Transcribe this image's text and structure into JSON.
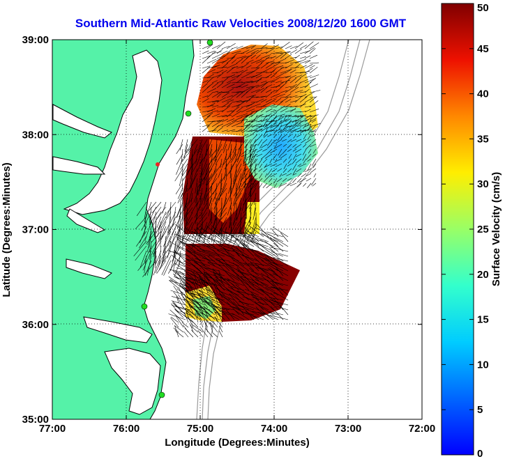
{
  "title": "Southern Mid-Atlantic Raw Velocities 2008/12/20 1600 GMT",
  "chart_data": {
    "type": "map",
    "xlabel": "Longitude (Degrees:Minutes)",
    "ylabel": "Latitude (Degrees:Minutes)",
    "xlim": [
      77,
      72
    ],
    "ylim": [
      35,
      39
    ],
    "x_ticks": [
      "77:00",
      "76:00",
      "75:00",
      "74:00",
      "73:00",
      "72:00"
    ],
    "y_ticks": [
      "39:00",
      "38:00",
      "37:00",
      "36:00",
      "35:00"
    ],
    "grid": "dotted",
    "colorbar": {
      "label": "Surface Velocity (cm/s)",
      "range": [
        0,
        50
      ],
      "ticks": [
        "50",
        "45",
        "40",
        "35",
        "30",
        "25",
        "20",
        "15",
        "10",
        "5",
        "0"
      ],
      "colormap": "jet"
    },
    "colors": {
      "land": "#55f2a8",
      "title": "#0000ee",
      "station": "#22dd22"
    }
  }
}
